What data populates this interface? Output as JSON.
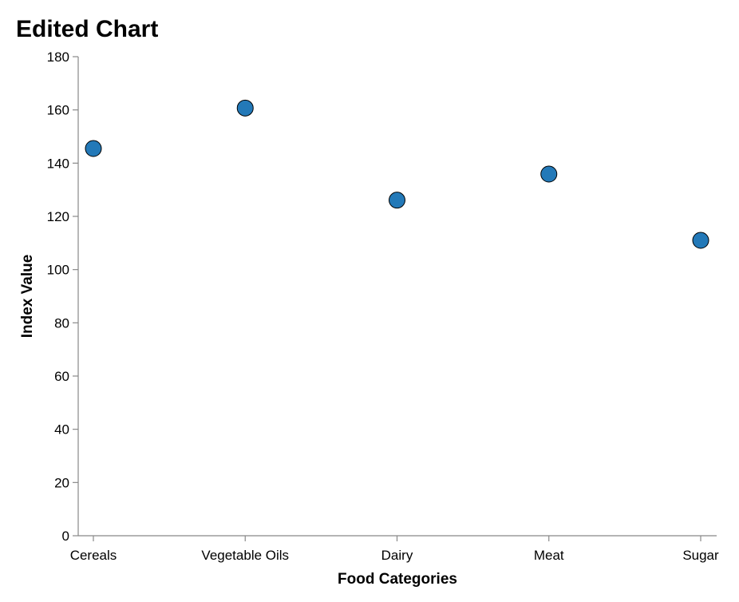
{
  "chart_data": {
    "type": "scatter",
    "title": "Edited Chart",
    "xlabel": "Food Categories",
    "ylabel": "Index Value",
    "categories": [
      "Cereals",
      "Vegetable Oils",
      "Dairy",
      "Meat",
      "Sugar"
    ],
    "values": [
      145.5,
      160.7,
      126.1,
      135.9,
      111.0
    ],
    "ylim": [
      0,
      180
    ],
    "yticks": [
      0,
      20,
      40,
      60,
      80,
      100,
      120,
      140,
      160,
      180
    ],
    "grid": false,
    "point_color": "#2379b8"
  }
}
